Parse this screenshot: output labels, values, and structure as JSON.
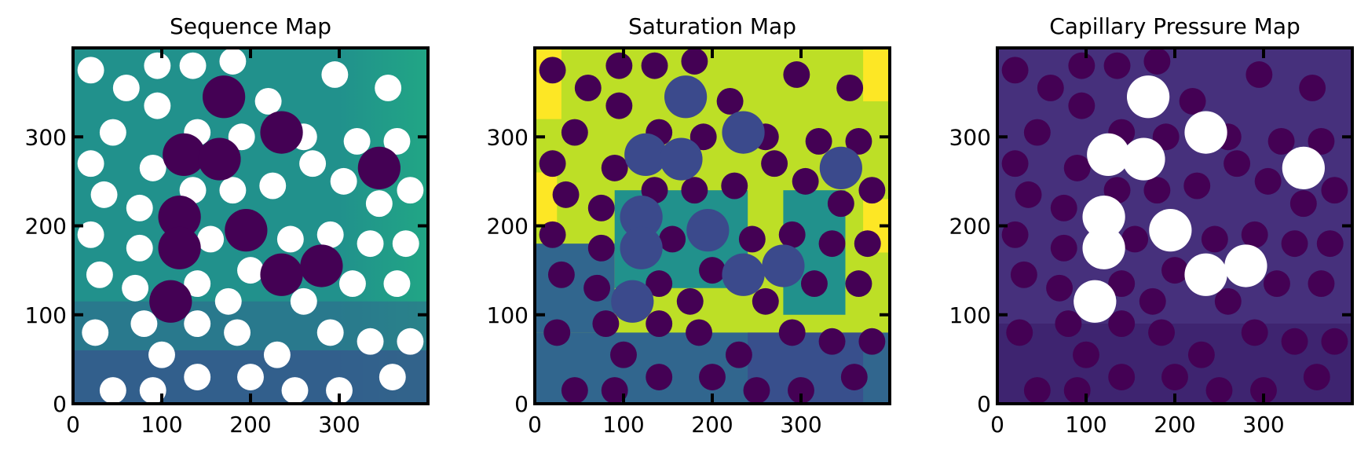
{
  "chart_data": [
    {
      "type": "heatmap",
      "title": "Sequence Map",
      "xlim": [
        0,
        400
      ],
      "ylim": [
        0,
        400
      ],
      "xticks": [
        0,
        100,
        200,
        300
      ],
      "yticks": [
        0,
        100,
        200,
        300
      ],
      "colormap": "viridis"
    },
    {
      "type": "heatmap",
      "title": "Saturation Map",
      "xlim": [
        0,
        400
      ],
      "ylim": [
        0,
        400
      ],
      "xticks": [
        0,
        100,
        200,
        300
      ],
      "yticks": [
        0,
        100,
        200,
        300
      ],
      "colormap": "viridis"
    },
    {
      "type": "heatmap",
      "title": "Capillary Pressure Map",
      "xlim": [
        0,
        400
      ],
      "ylim": [
        0,
        400
      ],
      "xticks": [
        0,
        100,
        200,
        300
      ],
      "yticks": [
        0,
        100,
        200,
        300
      ],
      "colormap": "viridis"
    }
  ],
  "colors": {
    "viridis_dark": "#440154",
    "viridis_indigo": "#3b4a8c",
    "viridis_blue": "#31668e",
    "viridis_teal": "#21918c",
    "viridis_green": "#21a685",
    "viridis_lime": "#bddf26",
    "viridis_yellow": "#fde725",
    "pc_purple": "#46307c",
    "pc_dark": "#3e2470",
    "void": "#ffffff"
  }
}
